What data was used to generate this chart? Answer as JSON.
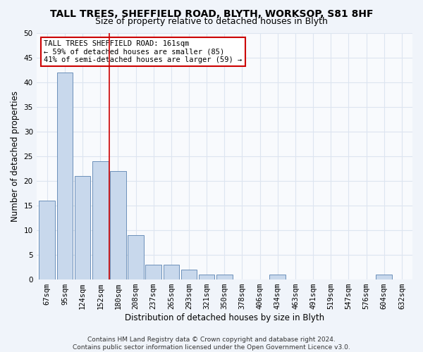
{
  "title": "TALL TREES, SHEFFIELD ROAD, BLYTH, WORKSOP, S81 8HF",
  "subtitle": "Size of property relative to detached houses in Blyth",
  "xlabel": "Distribution of detached houses by size in Blyth",
  "ylabel": "Number of detached properties",
  "categories": [
    "67sqm",
    "95sqm",
    "124sqm",
    "152sqm",
    "180sqm",
    "208sqm",
    "237sqm",
    "265sqm",
    "293sqm",
    "321sqm",
    "350sqm",
    "378sqm",
    "406sqm",
    "434sqm",
    "463sqm",
    "491sqm",
    "519sqm",
    "547sqm",
    "576sqm",
    "604sqm",
    "632sqm"
  ],
  "values": [
    16,
    42,
    21,
    24,
    22,
    9,
    3,
    3,
    2,
    1,
    1,
    0,
    0,
    1,
    0,
    0,
    0,
    0,
    0,
    1,
    0
  ],
  "bar_color": "#c8d8ec",
  "bar_edge_color": "#5a82b0",
  "vline_x": 3.5,
  "annotation_text": "TALL TREES SHEFFIELD ROAD: 161sqm\n← 59% of detached houses are smaller (85)\n41% of semi-detached houses are larger (59) →",
  "annotation_box_color": "#ffffff",
  "annotation_box_edge": "#cc0000",
  "ylim": [
    0,
    50
  ],
  "yticks": [
    0,
    5,
    10,
    15,
    20,
    25,
    30,
    35,
    40,
    45,
    50
  ],
  "footer": "Contains HM Land Registry data © Crown copyright and database right 2024.\nContains public sector information licensed under the Open Government Licence v3.0.",
  "bg_color": "#f0f4fa",
  "plot_bg_color": "#f8fafd",
  "grid_color": "#dde5f0",
  "vline_color": "#cc0000",
  "title_fontsize": 10,
  "subtitle_fontsize": 9,
  "axis_label_fontsize": 8.5,
  "tick_fontsize": 7.5,
  "footer_fontsize": 6.5,
  "annot_fontsize": 7.5
}
